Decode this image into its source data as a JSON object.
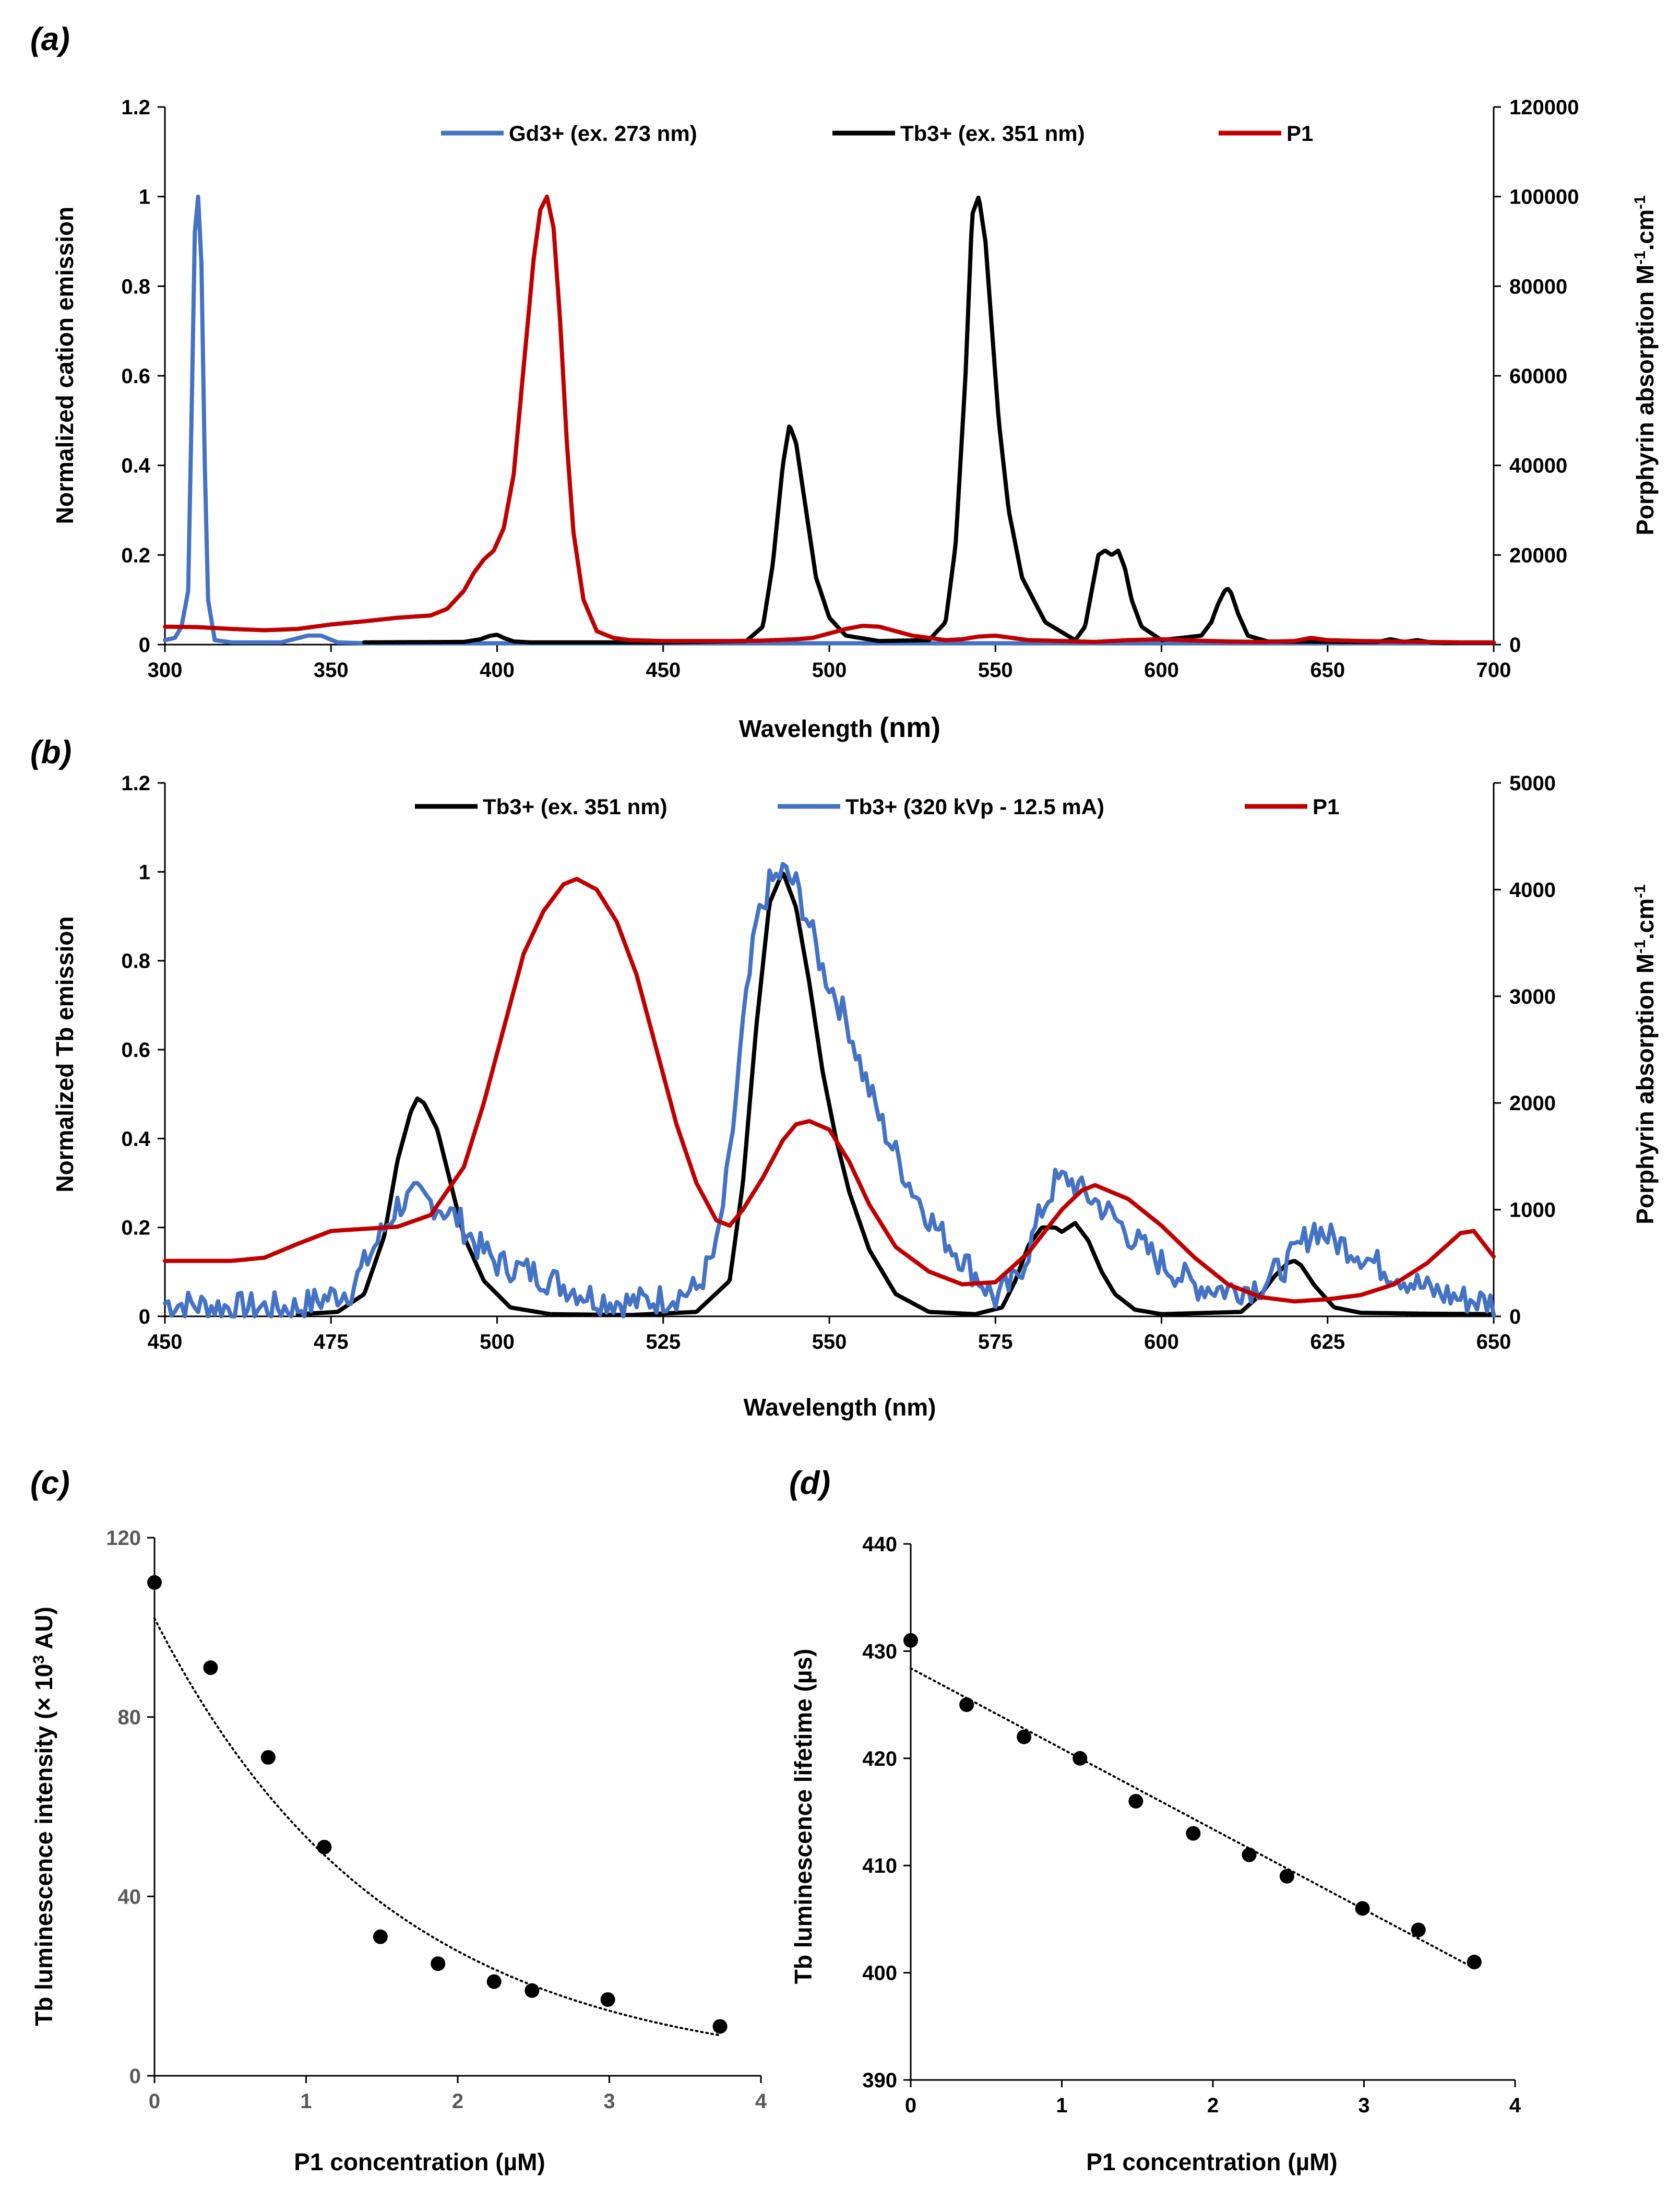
{
  "colors": {
    "blue": "#4472C4",
    "black": "#000000",
    "red": "#C00000",
    "grey": "#595959"
  },
  "chart_data": [
    {
      "panel_label": "(a)",
      "type": "line",
      "xlabel": "Wavelength",
      "xlabel_unit": "(nm)",
      "ylabel": "Normalized cation emission",
      "y2label": "Porphyrin absorption M",
      "y2label_sup1": "-1",
      "y2label_mid": ".cm",
      "y2label_sup2": "-1",
      "xlim": [
        300,
        700
      ],
      "ylim": [
        0,
        1.2
      ],
      "y2lim": [
        0,
        120000
      ],
      "xticks": [
        "300",
        "350",
        "400",
        "450",
        "500",
        "550",
        "600",
        "650",
        "700"
      ],
      "yticks": [
        "0",
        "0.2",
        "0.4",
        "0.6",
        "0.8",
        "1",
        "1.2"
      ],
      "y2ticks": [
        "0",
        "20000",
        "40000",
        "60000",
        "80000",
        "100000",
        "120000"
      ],
      "legend": [
        "Gd3+ (ex. 273 nm)",
        "Tb3+ (ex. 351 nm)",
        "P1"
      ],
      "series": [
        {
          "name": "Gd3+ (ex. 273 nm)",
          "color": "#4472C4",
          "axis": "left",
          "x": [
            300,
            303,
            305,
            307,
            308,
            309,
            310,
            311,
            312,
            313,
            315,
            320,
            335,
            343,
            347,
            352,
            360,
            400,
            450,
            500,
            550,
            600,
            650,
            700
          ],
          "y": [
            0.01,
            0.015,
            0.04,
            0.12,
            0.5,
            0.92,
            1.0,
            0.85,
            0.4,
            0.1,
            0.01,
            0.005,
            0.005,
            0.02,
            0.02,
            0.005,
            0.003,
            0.003,
            0.003,
            0.003,
            0.003,
            0.003,
            0.003,
            0.003
          ]
        },
        {
          "name": "Tb3+ (ex. 351 nm)",
          "color": "#000000",
          "axis": "left",
          "x": [
            360,
            390,
            395,
            398,
            400,
            402,
            405,
            410,
            450,
            475,
            480,
            483,
            486,
            488,
            490,
            493,
            496,
            500,
            505,
            515,
            530,
            535,
            538,
            541,
            543,
            545,
            547,
            549,
            551,
            554,
            558,
            565,
            574,
            577,
            579,
            581,
            583,
            585,
            587,
            589,
            591,
            594,
            600,
            612,
            615,
            617,
            619,
            620,
            621,
            623,
            626,
            632,
            665,
            669,
            673,
            677,
            681,
            685,
            700
          ],
          "y": [
            0.005,
            0.006,
            0.012,
            0.02,
            0.022,
            0.015,
            0.007,
            0.005,
            0.005,
            0.008,
            0.04,
            0.18,
            0.4,
            0.49,
            0.45,
            0.3,
            0.15,
            0.06,
            0.02,
            0.008,
            0.01,
            0.05,
            0.22,
            0.6,
            0.96,
            1.0,
            0.9,
            0.7,
            0.5,
            0.3,
            0.15,
            0.05,
            0.01,
            0.04,
            0.12,
            0.2,
            0.21,
            0.2,
            0.21,
            0.17,
            0.1,
            0.04,
            0.01,
            0.02,
            0.05,
            0.09,
            0.12,
            0.125,
            0.115,
            0.07,
            0.02,
            0.007,
            0.006,
            0.012,
            0.006,
            0.01,
            0.005,
            0.004,
            0.004
          ]
        },
        {
          "name": "P1",
          "color": "#C00000",
          "axis": "right",
          "x": [
            300,
            310,
            320,
            330,
            340,
            350,
            360,
            370,
            380,
            385,
            390,
            393,
            396,
            399,
            402,
            405,
            408,
            411,
            413,
            415,
            417,
            419,
            421,
            423,
            426,
            430,
            435,
            440,
            450,
            460,
            470,
            480,
            490,
            495,
            500,
            505,
            510,
            515,
            520,
            525,
            530,
            535,
            540,
            545,
            550,
            555,
            560,
            570,
            580,
            590,
            600,
            610,
            620,
            630,
            640,
            645,
            650,
            660,
            670,
            680,
            690,
            700
          ],
          "y": [
            4000,
            3900,
            3500,
            3200,
            3500,
            4500,
            5200,
            6000,
            6500,
            8000,
            12000,
            16000,
            19000,
            21000,
            26000,
            38000,
            62000,
            86000,
            97000,
            100000,
            93000,
            72000,
            45000,
            25000,
            10000,
            3000,
            1500,
            1000,
            800,
            800,
            800,
            900,
            1200,
            1500,
            2500,
            3500,
            4200,
            4000,
            3000,
            2000,
            1500,
            1000,
            1200,
            1800,
            2000,
            1500,
            1000,
            800,
            600,
            1000,
            1200,
            900,
            700,
            600,
            800,
            1500,
            1000,
            800,
            700,
            600,
            500,
            500
          ]
        }
      ]
    },
    {
      "panel_label": "(b)",
      "type": "line",
      "xlabel": "Wavelength (nm)",
      "ylabel": "Normalized  Tb emission",
      "y2label": "Porphyrin absorption M",
      "y2label_sup1": "-1",
      "y2label_mid": ".cm",
      "y2label_sup2": "-1",
      "xlim": [
        450,
        650
      ],
      "ylim": [
        0,
        1.2
      ],
      "y2lim": [
        0,
        5000
      ],
      "xticks": [
        "450",
        "475",
        "500",
        "525",
        "550",
        "575",
        "600",
        "625",
        "650"
      ],
      "yticks": [
        "0",
        "0.2",
        "0.4",
        "0.6",
        "0.8",
        "1",
        "1.2"
      ],
      "y2ticks": [
        "0",
        "1000",
        "2000",
        "3000",
        "4000",
        "5000"
      ],
      "legend": [
        "Tb3+ (ex. 351 nm)",
        "Tb3+ (320 kVp - 12.5 mA)",
        "P1"
      ],
      "series": [
        {
          "name": "Tb3+ (ex. 351 nm)",
          "color": "#000000",
          "axis": "left",
          "x": [
            470,
            476,
            480,
            483,
            485,
            487,
            488,
            489,
            491,
            493,
            495,
            498,
            502,
            508,
            520,
            530,
            535,
            537,
            539,
            541,
            543,
            545,
            547,
            549,
            551,
            553,
            556,
            560,
            565,
            572,
            576,
            578,
            580,
            582,
            584,
            585,
            586,
            587,
            589,
            591,
            593,
            596,
            600,
            612,
            615,
            617,
            619,
            620,
            621,
            623,
            626,
            630,
            640,
            650
          ],
          "y": [
            0.005,
            0.01,
            0.05,
            0.18,
            0.35,
            0.46,
            0.49,
            0.48,
            0.42,
            0.3,
            0.18,
            0.08,
            0.02,
            0.005,
            0.003,
            0.01,
            0.08,
            0.3,
            0.65,
            0.93,
            1.0,
            0.92,
            0.75,
            0.55,
            0.4,
            0.28,
            0.15,
            0.05,
            0.01,
            0.005,
            0.02,
            0.08,
            0.16,
            0.2,
            0.2,
            0.19,
            0.2,
            0.21,
            0.17,
            0.1,
            0.05,
            0.015,
            0.005,
            0.01,
            0.05,
            0.09,
            0.12,
            0.125,
            0.115,
            0.07,
            0.02,
            0.008,
            0.006,
            0.005
          ]
        },
        {
          "name": "Tb3+ (320 kVp - 12.5 mA)",
          "color": "#4472C4",
          "axis": "left",
          "noisy": true,
          "x": [
            450,
            460,
            470,
            478,
            482,
            485,
            488,
            491,
            494,
            497,
            500,
            505,
            510,
            515,
            520,
            525,
            530,
            533,
            535,
            537,
            539,
            541,
            543,
            545,
            547,
            549,
            551,
            553,
            555,
            558,
            562,
            566,
            570,
            575,
            578,
            580,
            582,
            584,
            586,
            588,
            590,
            593,
            596,
            600,
            605,
            610,
            615,
            619,
            621,
            623,
            626,
            629,
            632,
            636,
            640,
            645,
            650
          ],
          "y": [
            0.03,
            0.02,
            0.02,
            0.06,
            0.17,
            0.25,
            0.27,
            0.25,
            0.22,
            0.16,
            0.12,
            0.1,
            0.07,
            0.04,
            0.03,
            0.04,
            0.06,
            0.15,
            0.35,
            0.65,
            0.88,
            0.97,
            1.0,
            0.97,
            0.88,
            0.78,
            0.72,
            0.65,
            0.55,
            0.43,
            0.3,
            0.2,
            0.13,
            0.04,
            0.08,
            0.15,
            0.24,
            0.3,
            0.31,
            0.28,
            0.26,
            0.22,
            0.17,
            0.12,
            0.07,
            0.06,
            0.07,
            0.12,
            0.16,
            0.2,
            0.17,
            0.15,
            0.12,
            0.09,
            0.06,
            0.04,
            0.03
          ]
        },
        {
          "name": "P1",
          "color": "#C00000",
          "axis": "right",
          "x": [
            450,
            460,
            465,
            470,
            475,
            480,
            485,
            490,
            495,
            498,
            501,
            504,
            507,
            510,
            512,
            515,
            518,
            521,
            524,
            527,
            530,
            533,
            535,
            537,
            540,
            543,
            545,
            547,
            550,
            553,
            556,
            560,
            565,
            570,
            575,
            580,
            585,
            588,
            590,
            595,
            600,
            605,
            610,
            615,
            620,
            625,
            630,
            635,
            640,
            645,
            647,
            650
          ],
          "y": [
            520,
            520,
            550,
            680,
            800,
            820,
            840,
            950,
            1400,
            2000,
            2700,
            3400,
            3800,
            4050,
            4100,
            4000,
            3700,
            3200,
            2500,
            1800,
            1250,
            900,
            850,
            1000,
            1300,
            1650,
            1800,
            1830,
            1750,
            1450,
            1050,
            650,
            420,
            300,
            320,
            600,
            1000,
            1180,
            1230,
            1100,
            850,
            550,
            300,
            180,
            140,
            160,
            200,
            300,
            500,
            780,
            800,
            560
          ]
        }
      ]
    },
    {
      "panel_label": "(c)",
      "type": "scatter",
      "xlabel": "P1 concentration (µM)",
      "ylabel_main": "Tb luminescence  intensity (× 10",
      "ylabel_sup": "3",
      "ylabel_tail": " AU)",
      "xlim": [
        0,
        4
      ],
      "ylim": [
        0,
        120
      ],
      "xticks": [
        "0",
        "1",
        "2",
        "3",
        "4"
      ],
      "yticks": [
        "0",
        "40",
        "80",
        "120"
      ],
      "x": [
        0,
        0.37,
        0.75,
        1.12,
        1.49,
        1.87,
        2.24,
        2.49,
        2.99,
        3.73
      ],
      "y": [
        110,
        91,
        71,
        51,
        31,
        25,
        21,
        19,
        17,
        11
      ],
      "trendline": {
        "type": "exponential",
        "a": 102,
        "b": -0.65,
        "x_range": [
          0,
          3.73
        ]
      }
    },
    {
      "panel_label": "(d)",
      "type": "scatter",
      "xlabel": "P1 concentration (µM)",
      "ylabel": "Tb luminescence  lifetime  (µs)",
      "xlim": [
        0,
        4
      ],
      "ylim": [
        390,
        440
      ],
      "xticks": [
        "0",
        "1",
        "2",
        "3",
        "4"
      ],
      "yticks": [
        "390",
        "400",
        "410",
        "420",
        "430",
        "440"
      ],
      "x": [
        0,
        0.37,
        0.75,
        1.12,
        1.49,
        1.87,
        2.24,
        2.49,
        2.99,
        3.36,
        3.73
      ],
      "y": [
        431,
        425,
        422,
        420,
        416,
        413,
        411,
        409,
        406,
        404,
        401
      ],
      "trendline": {
        "type": "linear",
        "slope": -7.5,
        "intercept": 428.4,
        "x_range": [
          0,
          3.73
        ]
      }
    }
  ]
}
